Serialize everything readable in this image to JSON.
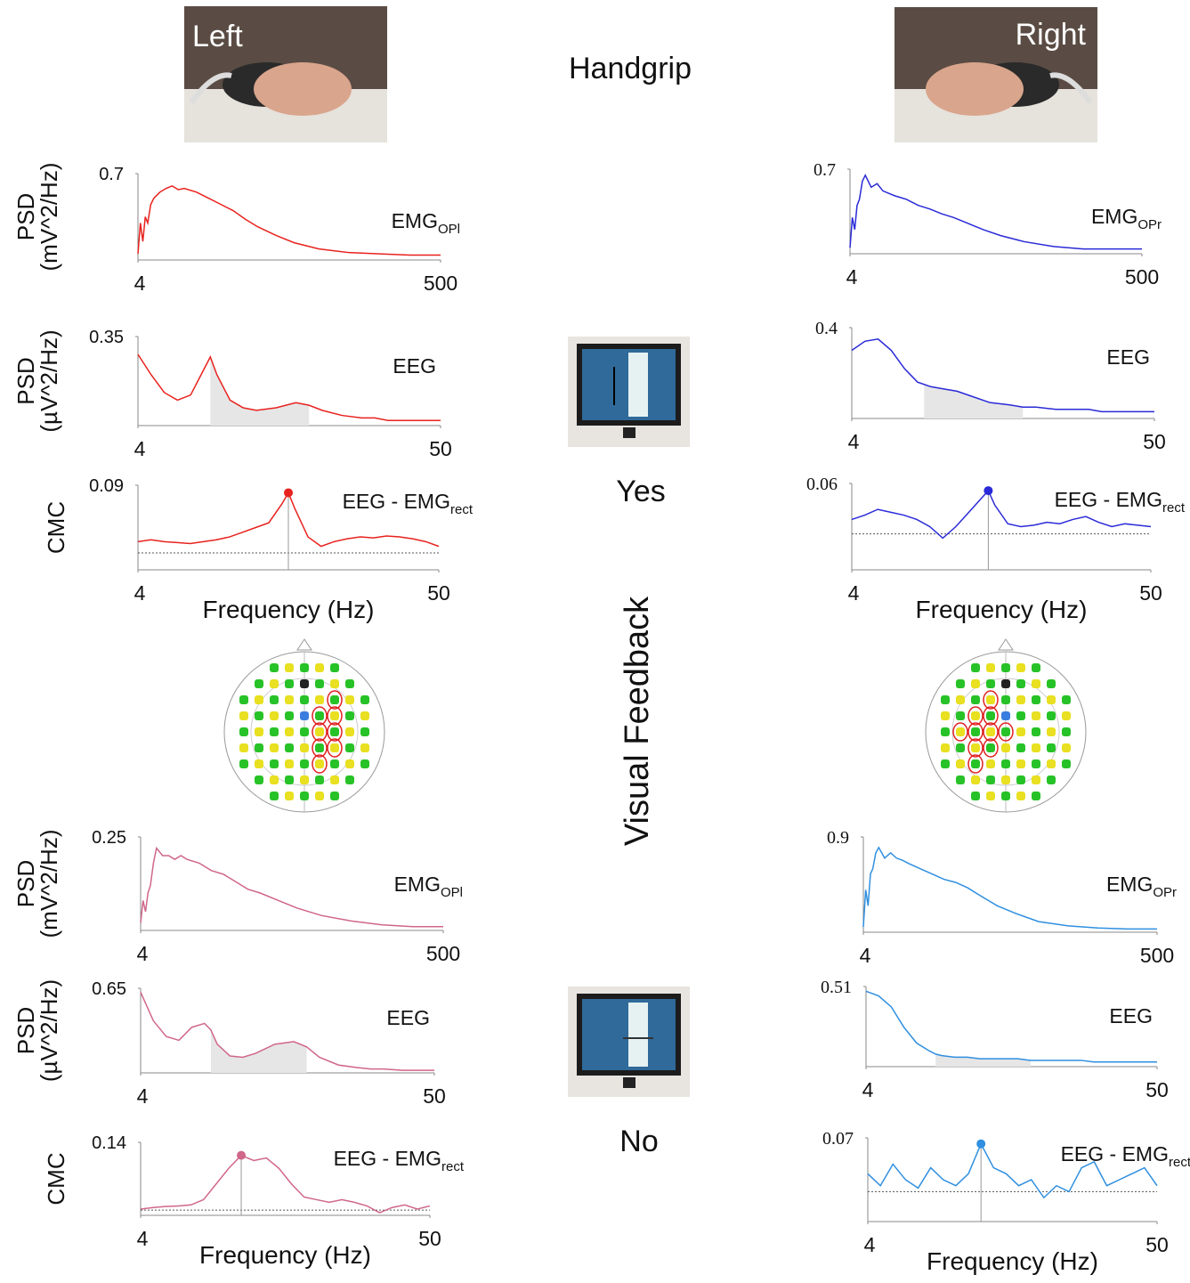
{
  "figure": {
    "title": "Handgrip",
    "left": "Left",
    "right": "Right",
    "condition": "Visual Feedback",
    "yes": "Yes",
    "no": "No"
  },
  "chart_data": [
    {
      "type": "line",
      "ylabel": [
        "PSD",
        "(mV^2/Hz)"
      ],
      "annotation": {
        "text": "EMG",
        "sub": "OPl"
      },
      "color": "#e8221e",
      "xlim": [
        4,
        500
      ],
      "xticks": [
        4,
        500
      ],
      "ylim": [
        0,
        0.7
      ],
      "yticks": [
        0.7
      ],
      "x": [
        4,
        8,
        12,
        16,
        20,
        25,
        30,
        40,
        50,
        60,
        70,
        80,
        100,
        120,
        140,
        160,
        180,
        200,
        230,
        260,
        300,
        350,
        400,
        450,
        500
      ],
      "values": [
        0.05,
        0.3,
        0.15,
        0.35,
        0.3,
        0.45,
        0.5,
        0.55,
        0.58,
        0.6,
        0.57,
        0.58,
        0.55,
        0.5,
        0.45,
        0.4,
        0.33,
        0.27,
        0.2,
        0.14,
        0.09,
        0.06,
        0.05,
        0.04,
        0.04
      ]
    },
    {
      "type": "line",
      "annotation": {
        "text": "EMG",
        "sub": "OPr"
      },
      "color": "#2a2ad8",
      "xlim": [
        4,
        500
      ],
      "xticks": [
        4,
        500
      ],
      "ylim": [
        0,
        0.7
      ],
      "yticks": [
        0.7
      ],
      "x": [
        4,
        8,
        12,
        16,
        20,
        25,
        30,
        40,
        50,
        60,
        70,
        80,
        100,
        120,
        140,
        160,
        180,
        200,
        230,
        260,
        300,
        350,
        400,
        450,
        500
      ],
      "values": [
        0.05,
        0.3,
        0.2,
        0.4,
        0.45,
        0.6,
        0.65,
        0.55,
        0.58,
        0.52,
        0.5,
        0.48,
        0.45,
        0.4,
        0.37,
        0.33,
        0.3,
        0.26,
        0.2,
        0.15,
        0.1,
        0.06,
        0.04,
        0.04,
        0.04
      ]
    },
    {
      "type": "line",
      "ylabel": [
        "PSD",
        "(µV^2/Hz)"
      ],
      "annotation": {
        "text": "EEG"
      },
      "color": "#e8221e",
      "shaded_band": [
        15,
        30
      ],
      "xlim": [
        4,
        50
      ],
      "xticks": [
        4,
        50
      ],
      "ylim": [
        0,
        0.35
      ],
      "yticks": [
        0.35
      ],
      "x": [
        4,
        6,
        8,
        10,
        12,
        14,
        15,
        16,
        18,
        20,
        22,
        25,
        28,
        30,
        32,
        35,
        38,
        40,
        42,
        45,
        48,
        50
      ],
      "values": [
        0.28,
        0.2,
        0.13,
        0.1,
        0.12,
        0.22,
        0.27,
        0.2,
        0.1,
        0.07,
        0.06,
        0.07,
        0.09,
        0.08,
        0.06,
        0.04,
        0.03,
        0.03,
        0.02,
        0.02,
        0.02,
        0.02
      ]
    },
    {
      "type": "line",
      "annotation": {
        "text": "EEG"
      },
      "color": "#2a2ad8",
      "shaded_band": [
        15,
        30
      ],
      "xlim": [
        4,
        50
      ],
      "xticks": [
        4,
        50
      ],
      "ylim": [
        0,
        0.4
      ],
      "yticks": [
        0.4
      ],
      "x": [
        4,
        6,
        8,
        10,
        12,
        14,
        15,
        16,
        18,
        20,
        22,
        25,
        28,
        30,
        32,
        35,
        38,
        40,
        42,
        45,
        48,
        50
      ],
      "values": [
        0.3,
        0.34,
        0.35,
        0.3,
        0.22,
        0.16,
        0.15,
        0.14,
        0.13,
        0.12,
        0.1,
        0.07,
        0.06,
        0.05,
        0.05,
        0.04,
        0.04,
        0.04,
        0.03,
        0.03,
        0.03,
        0.03
      ]
    },
    {
      "type": "line",
      "ylabel": [
        "CMC"
      ],
      "xlabel": "Frequency (Hz)",
      "annotation": {
        "text": "EEG - EMG",
        "sub": "rect"
      },
      "color": "#e8221e",
      "xlim": [
        4,
        50
      ],
      "xticks": [
        4,
        50
      ],
      "ylim": [
        0,
        0.09
      ],
      "yticks": [
        0.09
      ],
      "threshold": 0.018,
      "peak": {
        "x": 27,
        "value": 0.082
      },
      "x": [
        4,
        6,
        8,
        10,
        12,
        14,
        16,
        18,
        20,
        22,
        24,
        26,
        27,
        28,
        30,
        32,
        34,
        36,
        38,
        40,
        42,
        44,
        46,
        48,
        50
      ],
      "values": [
        0.03,
        0.032,
        0.03,
        0.029,
        0.028,
        0.03,
        0.032,
        0.035,
        0.04,
        0.045,
        0.05,
        0.07,
        0.082,
        0.065,
        0.035,
        0.025,
        0.03,
        0.033,
        0.035,
        0.034,
        0.036,
        0.035,
        0.033,
        0.03,
        0.025
      ]
    },
    {
      "type": "line",
      "xlabel": "Frequency (Hz)",
      "annotation": {
        "text": "EEG - EMG",
        "sub": "rect"
      },
      "color": "#2a2ad8",
      "xlim": [
        4,
        50
      ],
      "xticks": [
        4,
        50
      ],
      "ylim": [
        0,
        0.06
      ],
      "yticks": [
        0.06
      ],
      "threshold": 0.025,
      "peak": {
        "x": 25,
        "value": 0.055
      },
      "x": [
        4,
        6,
        8,
        10,
        12,
        14,
        16,
        18,
        20,
        22,
        24,
        25,
        26,
        28,
        30,
        32,
        34,
        36,
        38,
        40,
        42,
        44,
        46,
        48,
        50
      ],
      "values": [
        0.035,
        0.038,
        0.042,
        0.04,
        0.038,
        0.035,
        0.03,
        0.022,
        0.03,
        0.04,
        0.05,
        0.055,
        0.045,
        0.032,
        0.03,
        0.031,
        0.033,
        0.032,
        0.035,
        0.037,
        0.033,
        0.03,
        0.032,
        0.031,
        0.03
      ]
    },
    {
      "type": "line",
      "ylabel": [
        "PSD",
        "(mV^2/Hz)"
      ],
      "annotation": {
        "text": "EMG",
        "sub": "OPl"
      },
      "color": "#d0668a",
      "xlim": [
        4,
        500
      ],
      "xticks": [
        4,
        500
      ],
      "ylim": [
        0,
        0.25
      ],
      "yticks": [
        0.25
      ],
      "x": [
        4,
        8,
        12,
        16,
        20,
        25,
        30,
        40,
        50,
        60,
        70,
        80,
        100,
        120,
        140,
        160,
        180,
        200,
        230,
        260,
        300,
        350,
        400,
        450,
        500
      ],
      "values": [
        0.02,
        0.08,
        0.05,
        0.1,
        0.12,
        0.18,
        0.22,
        0.2,
        0.2,
        0.19,
        0.2,
        0.19,
        0.18,
        0.16,
        0.15,
        0.13,
        0.11,
        0.1,
        0.08,
        0.06,
        0.04,
        0.025,
        0.015,
        0.01,
        0.01
      ]
    },
    {
      "type": "line",
      "annotation": {
        "text": "EMG",
        "sub": "OPr"
      },
      "color": "#2f8fe0",
      "xlim": [
        4,
        500
      ],
      "xticks": [
        4,
        500
      ],
      "ylim": [
        0,
        0.9
      ],
      "yticks": [
        0.9
      ],
      "x": [
        4,
        8,
        12,
        16,
        20,
        25,
        30,
        40,
        50,
        60,
        70,
        80,
        100,
        120,
        140,
        160,
        180,
        200,
        230,
        260,
        300,
        350,
        400,
        450,
        500
      ],
      "values": [
        0.05,
        0.4,
        0.25,
        0.55,
        0.6,
        0.75,
        0.8,
        0.7,
        0.75,
        0.7,
        0.68,
        0.65,
        0.6,
        0.55,
        0.5,
        0.47,
        0.42,
        0.35,
        0.25,
        0.18,
        0.1,
        0.06,
        0.04,
        0.03,
        0.03
      ]
    },
    {
      "type": "line",
      "ylabel": [
        "PSD",
        "(µV^2/Hz)"
      ],
      "annotation": {
        "text": "EEG"
      },
      "color": "#d0668a",
      "shaded_band": [
        15,
        30
      ],
      "xlim": [
        4,
        50
      ],
      "xticks": [
        4,
        50
      ],
      "ylim": [
        0,
        0.65
      ],
      "yticks": [
        0.65
      ],
      "x": [
        4,
        6,
        8,
        10,
        12,
        14,
        15,
        16,
        18,
        20,
        22,
        25,
        28,
        30,
        32,
        35,
        38,
        40,
        42,
        45,
        48,
        50
      ],
      "values": [
        0.62,
        0.4,
        0.28,
        0.25,
        0.35,
        0.38,
        0.33,
        0.22,
        0.13,
        0.12,
        0.15,
        0.22,
        0.24,
        0.2,
        0.12,
        0.06,
        0.04,
        0.03,
        0.03,
        0.02,
        0.02,
        0.02
      ]
    },
    {
      "type": "line",
      "annotation": {
        "text": "EEG"
      },
      "color": "#2f8fe0",
      "shaded_band": [
        15,
        30
      ],
      "xlim": [
        4,
        50
      ],
      "xticks": [
        4,
        50
      ],
      "ylim": [
        0,
        0.51
      ],
      "yticks": [
        0.51
      ],
      "x": [
        4,
        6,
        8,
        10,
        12,
        14,
        15,
        16,
        18,
        20,
        22,
        25,
        28,
        30,
        32,
        35,
        38,
        40,
        42,
        45,
        48,
        50
      ],
      "values": [
        0.48,
        0.45,
        0.38,
        0.25,
        0.15,
        0.1,
        0.08,
        0.07,
        0.06,
        0.06,
        0.05,
        0.05,
        0.05,
        0.04,
        0.04,
        0.04,
        0.04,
        0.03,
        0.03,
        0.03,
        0.03,
        0.03
      ]
    },
    {
      "type": "line",
      "ylabel": [
        "CMC"
      ],
      "xlabel": "Frequency (Hz)",
      "annotation": {
        "text": "EEG - EMG",
        "sub": "rect"
      },
      "color": "#d0668a",
      "xlim": [
        4,
        50
      ],
      "xticks": [
        4,
        50
      ],
      "ylim": [
        0,
        0.14
      ],
      "yticks": [
        0.14
      ],
      "threshold": 0.01,
      "peak": {
        "x": 20,
        "value": 0.115
      },
      "x": [
        4,
        6,
        8,
        10,
        12,
        14,
        16,
        18,
        20,
        22,
        24,
        26,
        28,
        30,
        32,
        34,
        36,
        38,
        40,
        42,
        44,
        46,
        48,
        50
      ],
      "values": [
        0.012,
        0.015,
        0.017,
        0.018,
        0.02,
        0.03,
        0.06,
        0.09,
        0.115,
        0.105,
        0.11,
        0.09,
        0.06,
        0.035,
        0.03,
        0.025,
        0.03,
        0.025,
        0.018,
        0.005,
        0.015,
        0.02,
        0.012,
        0.018
      ]
    },
    {
      "type": "line",
      "xlabel": "Frequency (Hz)",
      "annotation": {
        "text": "EEG - EMG",
        "sub": "rect"
      },
      "color": "#2f8fe0",
      "xlim": [
        4,
        50
      ],
      "xticks": [
        4,
        50
      ],
      "ylim": [
        0,
        0.07
      ],
      "yticks": [
        0.07
      ],
      "threshold": 0.025,
      "peak": {
        "x": 22,
        "value": 0.065
      },
      "x": [
        4,
        6,
        8,
        10,
        12,
        14,
        16,
        18,
        20,
        22,
        24,
        26,
        28,
        30,
        32,
        34,
        36,
        38,
        40,
        42,
        44,
        46,
        48,
        50
      ],
      "values": [
        0.04,
        0.03,
        0.048,
        0.035,
        0.028,
        0.045,
        0.035,
        0.03,
        0.04,
        0.065,
        0.045,
        0.04,
        0.03,
        0.035,
        0.02,
        0.03,
        0.025,
        0.045,
        0.05,
        0.03,
        0.035,
        0.04,
        0.045,
        0.03
      ]
    }
  ]
}
